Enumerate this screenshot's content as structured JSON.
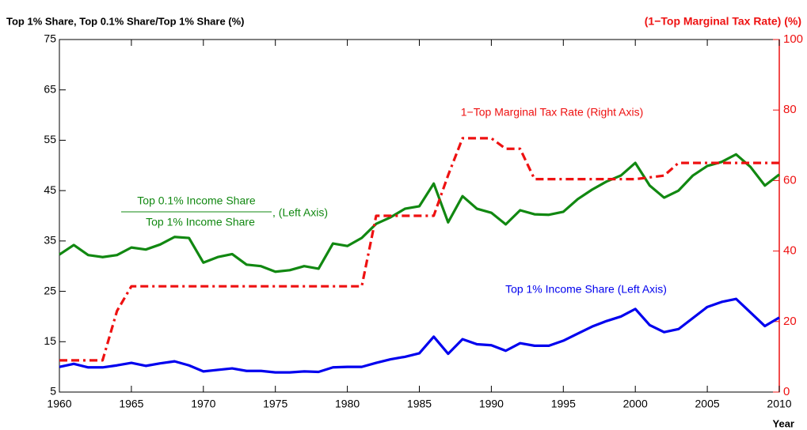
{
  "chart_data": {
    "type": "line",
    "ylabel": "Top 1% Share, Top 0.1% Share/Top 1% Share (%)",
    "y2label": "(1−Top Marginal Tax Rate) (%)",
    "xlabel": "Year",
    "x": [
      1960,
      1961,
      1962,
      1963,
      1964,
      1965,
      1966,
      1967,
      1968,
      1969,
      1970,
      1971,
      1972,
      1973,
      1974,
      1975,
      1976,
      1977,
      1978,
      1979,
      1980,
      1981,
      1982,
      1983,
      1984,
      1985,
      1986,
      1987,
      1988,
      1989,
      1990,
      1991,
      1992,
      1993,
      1994,
      1995,
      1996,
      1997,
      1998,
      1999,
      2000,
      2001,
      2002,
      2003,
      2004,
      2005,
      2006,
      2007,
      2008,
      2009,
      2010
    ],
    "series": [
      {
        "name": "Top 1% Income Share",
        "color": "#0000ee",
        "axis": "y",
        "values": [
          10.0,
          10.6,
          9.9,
          9.9,
          10.3,
          10.8,
          10.2,
          10.7,
          11.1,
          10.3,
          9.1,
          9.4,
          9.7,
          9.2,
          9.2,
          8.9,
          8.9,
          9.1,
          9.0,
          9.9,
          10.0,
          10.0,
          10.8,
          11.5,
          12.0,
          12.7,
          16.0,
          12.6,
          15.5,
          14.5,
          14.3,
          13.2,
          14.7,
          14.2,
          14.2,
          15.2,
          16.6,
          18.0,
          19.1,
          20.0,
          21.5,
          18.3,
          16.9,
          17.5,
          19.7,
          21.9,
          22.9,
          23.5,
          20.8,
          18.1,
          19.8
        ]
      },
      {
        "name": "Top 0.1% / Top 1% Income Share",
        "color": "#118811",
        "axis": "y",
        "values": [
          32.3,
          34.2,
          32.2,
          31.8,
          32.2,
          33.7,
          33.3,
          34.3,
          35.8,
          35.6,
          30.7,
          31.8,
          32.4,
          30.3,
          30.0,
          28.9,
          29.2,
          30.0,
          29.5,
          34.5,
          34.0,
          35.6,
          38.4,
          39.7,
          41.4,
          41.9,
          46.4,
          38.7,
          43.9,
          41.4,
          40.6,
          38.3,
          41.1,
          40.3,
          40.2,
          40.8,
          43.3,
          45.2,
          46.8,
          48.0,
          50.5,
          46.0,
          43.6,
          45.0,
          48.0,
          49.9,
          50.7,
          52.2,
          49.7,
          46.0,
          48.2
        ]
      },
      {
        "name": "1−Top Marginal Tax Rate",
        "color": "#ee1111",
        "axis": "y2",
        "dashed": true,
        "values": [
          9,
          9,
          9,
          9,
          23,
          30,
          30,
          30,
          30,
          30,
          30,
          30,
          30,
          30,
          30,
          30,
          30,
          30,
          30,
          30,
          30,
          30,
          50,
          50,
          50,
          50,
          50,
          61.5,
          72,
          72,
          72,
          69,
          69,
          60.4,
          60.4,
          60.4,
          60.4,
          60.4,
          60.4,
          60.4,
          60.4,
          60.9,
          61.4,
          65,
          65,
          65,
          65,
          65,
          65,
          65,
          65
        ]
      }
    ],
    "annotations": [
      {
        "text": "1−Top Marginal Tax Rate (Right Axis)"
      },
      {
        "text": "Top 1% Income Share (Left Axis)"
      },
      {
        "numerator": "Top 0.1% Income Share",
        "denominator": "Top 1% Income Share",
        "suffix": ", (Left Axis)"
      }
    ],
    "xlim": [
      1960,
      2010
    ],
    "xticks": [
      1960,
      1965,
      1970,
      1975,
      1980,
      1985,
      1990,
      1995,
      2000,
      2005,
      2010
    ],
    "ylim": [
      5,
      75
    ],
    "yticks": [
      5,
      15,
      25,
      35,
      45,
      55,
      65,
      75
    ],
    "y2lim": [
      0,
      100
    ],
    "y2ticks": [
      0,
      20,
      40,
      60,
      80,
      100
    ],
    "grid": false
  }
}
